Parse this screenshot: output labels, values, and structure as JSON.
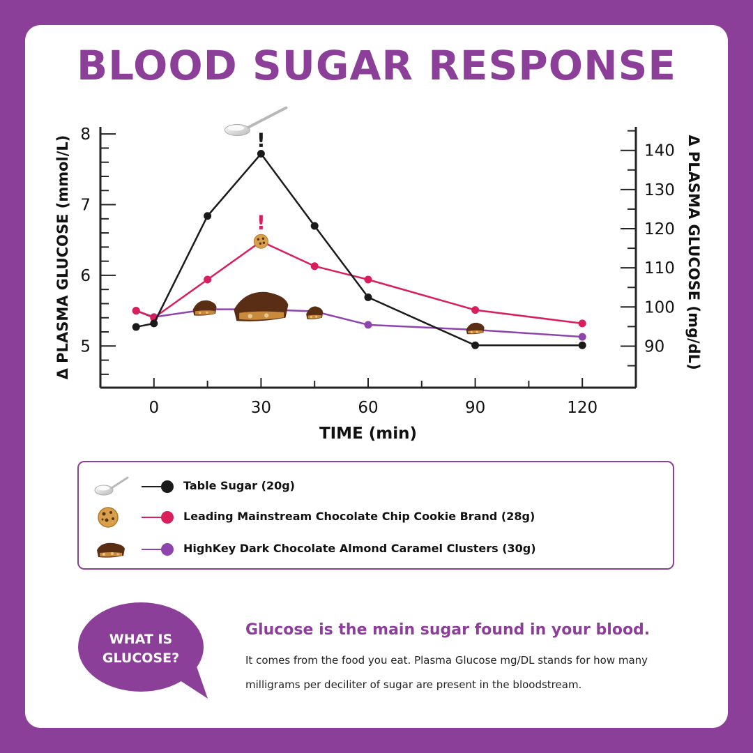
{
  "title": "BLOOD SUGAR RESPONSE",
  "chart_data": {
    "type": "line",
    "x": [
      -5,
      0,
      15,
      30,
      45,
      60,
      90,
      120
    ],
    "xticks": [
      0,
      30,
      60,
      90,
      120
    ],
    "xlim": [
      -15,
      135
    ],
    "xlabel": "TIME (min)",
    "ylabel_left": "Δ PLASMA GLUCOSE (mmol/L)",
    "ylabel_right": "Δ PLASMA GLUCOSE (mg/dL)",
    "ylim_left": [
      4.5,
      8.1
    ],
    "yticks_left": [
      5,
      6,
      7,
      8
    ],
    "ylim_right": [
      81,
      146
    ],
    "yticks_right": [
      90,
      100,
      110,
      120,
      130,
      140
    ],
    "legend_position": "below chart",
    "series": [
      {
        "name": "Table Sugar (20g)",
        "color": "#1a1a1a",
        "values": [
          5.27,
          5.32,
          6.84,
          7.72,
          6.7,
          5.69,
          5.01,
          5.01
        ]
      },
      {
        "name": "Leading Mainstream Chocolate Chip Cookie Brand (28g)",
        "color": "#d81e5b",
        "values": [
          5.5,
          5.4,
          5.94,
          6.48,
          6.13,
          5.94,
          5.51,
          5.32
        ]
      },
      {
        "name": "HighKey Dark Chocolate Almond Caramel Clusters (30g)",
        "color": "#8e44ad",
        "values": [
          5.5,
          5.41,
          5.52,
          5.52,
          5.49,
          5.3,
          5.23,
          5.13
        ]
      }
    ],
    "annotations": [
      {
        "text": "!",
        "x": 30,
        "series": 0,
        "color": "#1a1a1a"
      },
      {
        "text": "!",
        "x": 30,
        "series": 1,
        "color": "#d81e5b"
      }
    ]
  },
  "legend_icons": [
    "spoon-icon",
    "cookie-icon",
    "chocolate-cluster-icon"
  ],
  "bubble": {
    "line1": "WHAT IS",
    "line2": "GLUCOSE?"
  },
  "info": {
    "heading": "Glucose is the main sugar found in your blood.",
    "body": "It comes from the food you eat. Plasma Glucose mg/DL stands for how many milligrams per deciliter of sugar are present in the bloodstream."
  },
  "colors": {
    "brand": "#8c3f98",
    "background": "#ffffff"
  }
}
